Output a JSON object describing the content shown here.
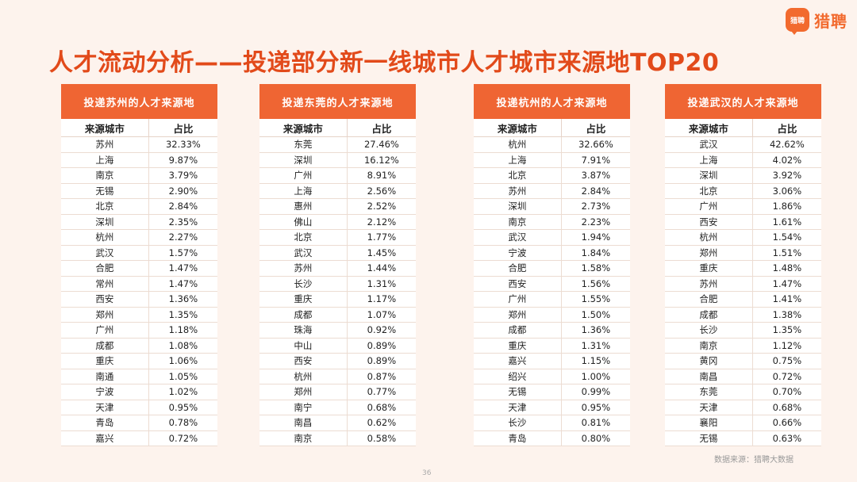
{
  "logo": {
    "mark_text": "猎聘",
    "brand_name": "猎聘"
  },
  "page_title": "人才流动分析——投递部分新一线城市人才城市来源地TOP20",
  "column_headers": [
    "来源城市",
    "占比"
  ],
  "tables": [
    {
      "header": "投递苏州的人才来源地",
      "rows": [
        {
          "city": "苏州",
          "share": "32.33%"
        },
        {
          "city": "上海",
          "share": "9.87%"
        },
        {
          "city": "南京",
          "share": "3.79%"
        },
        {
          "city": "无锡",
          "share": "2.90%"
        },
        {
          "city": "北京",
          "share": "2.84%"
        },
        {
          "city": "深圳",
          "share": "2.35%"
        },
        {
          "city": "杭州",
          "share": "2.27%"
        },
        {
          "city": "武汉",
          "share": "1.57%"
        },
        {
          "city": "合肥",
          "share": "1.47%"
        },
        {
          "city": "常州",
          "share": "1.47%"
        },
        {
          "city": "西安",
          "share": "1.36%"
        },
        {
          "city": "郑州",
          "share": "1.35%"
        },
        {
          "city": "广州",
          "share": "1.18%"
        },
        {
          "city": "成都",
          "share": "1.08%"
        },
        {
          "city": "重庆",
          "share": "1.06%"
        },
        {
          "city": "南通",
          "share": "1.05%"
        },
        {
          "city": "宁波",
          "share": "1.02%"
        },
        {
          "city": "天津",
          "share": "0.95%"
        },
        {
          "city": "青岛",
          "share": "0.78%"
        },
        {
          "city": "嘉兴",
          "share": "0.72%"
        }
      ]
    },
    {
      "header": "投递东莞的人才来源地",
      "rows": [
        {
          "city": "东莞",
          "share": "27.46%"
        },
        {
          "city": "深圳",
          "share": "16.12%"
        },
        {
          "city": "广州",
          "share": "8.91%"
        },
        {
          "city": "上海",
          "share": "2.56%"
        },
        {
          "city": "惠州",
          "share": "2.52%"
        },
        {
          "city": "佛山",
          "share": "2.12%"
        },
        {
          "city": "北京",
          "share": "1.77%"
        },
        {
          "city": "武汉",
          "share": "1.45%"
        },
        {
          "city": "苏州",
          "share": "1.44%"
        },
        {
          "city": "长沙",
          "share": "1.31%"
        },
        {
          "city": "重庆",
          "share": "1.17%"
        },
        {
          "city": "成都",
          "share": "1.07%"
        },
        {
          "city": "珠海",
          "share": "0.92%"
        },
        {
          "city": "中山",
          "share": "0.89%"
        },
        {
          "city": "西安",
          "share": "0.89%"
        },
        {
          "city": "杭州",
          "share": "0.87%"
        },
        {
          "city": "郑州",
          "share": "0.77%"
        },
        {
          "city": "南宁",
          "share": "0.68%"
        },
        {
          "city": "南昌",
          "share": "0.62%"
        },
        {
          "city": "南京",
          "share": "0.58%"
        }
      ]
    },
    {
      "header": "投递杭州的人才来源地",
      "rows": [
        {
          "city": "杭州",
          "share": "32.66%"
        },
        {
          "city": "上海",
          "share": "7.91%"
        },
        {
          "city": "北京",
          "share": "3.87%"
        },
        {
          "city": "苏州",
          "share": "2.84%"
        },
        {
          "city": "深圳",
          "share": "2.73%"
        },
        {
          "city": "南京",
          "share": "2.23%"
        },
        {
          "city": "武汉",
          "share": "1.94%"
        },
        {
          "city": "宁波",
          "share": "1.84%"
        },
        {
          "city": "合肥",
          "share": "1.58%"
        },
        {
          "city": "西安",
          "share": "1.56%"
        },
        {
          "city": "广州",
          "share": "1.55%"
        },
        {
          "city": "郑州",
          "share": "1.50%"
        },
        {
          "city": "成都",
          "share": "1.36%"
        },
        {
          "city": "重庆",
          "share": "1.31%"
        },
        {
          "city": "嘉兴",
          "share": "1.15%"
        },
        {
          "city": "绍兴",
          "share": "1.00%"
        },
        {
          "city": "无锡",
          "share": "0.99%"
        },
        {
          "city": "天津",
          "share": "0.95%"
        },
        {
          "city": "长沙",
          "share": "0.81%"
        },
        {
          "city": "青岛",
          "share": "0.80%"
        }
      ]
    },
    {
      "header": "投递武汉的人才来源地",
      "rows": [
        {
          "city": "武汉",
          "share": "42.62%"
        },
        {
          "city": "上海",
          "share": "4.02%"
        },
        {
          "city": "深圳",
          "share": "3.92%"
        },
        {
          "city": "北京",
          "share": "3.06%"
        },
        {
          "city": "广州",
          "share": "1.86%"
        },
        {
          "city": "西安",
          "share": "1.61%"
        },
        {
          "city": "杭州",
          "share": "1.54%"
        },
        {
          "city": "郑州",
          "share": "1.51%"
        },
        {
          "city": "重庆",
          "share": "1.48%"
        },
        {
          "city": "苏州",
          "share": "1.47%"
        },
        {
          "city": "合肥",
          "share": "1.41%"
        },
        {
          "city": "成都",
          "share": "1.38%"
        },
        {
          "city": "长沙",
          "share": "1.35%"
        },
        {
          "city": "南京",
          "share": "1.12%"
        },
        {
          "city": "黄冈",
          "share": "0.75%"
        },
        {
          "city": "南昌",
          "share": "0.72%"
        },
        {
          "city": "东莞",
          "share": "0.70%"
        },
        {
          "city": "天津",
          "share": "0.68%"
        },
        {
          "city": "襄阳",
          "share": "0.66%"
        },
        {
          "city": "无锡",
          "share": "0.63%"
        }
      ]
    }
  ],
  "source_note": "数据来源：猎聘大数据",
  "page_number": "36",
  "colors": {
    "accent": "#ef6533",
    "title": "#e24a1a",
    "background": "#fdf3ed"
  }
}
